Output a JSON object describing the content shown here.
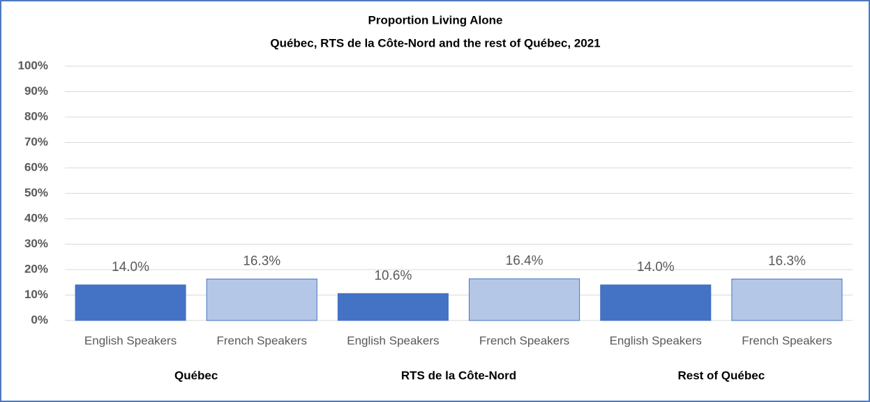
{
  "chart_data": {
    "type": "bar",
    "title": "Proportion Living Alone",
    "subtitle": "Québec, RTS de la Côte-Nord and the rest of Québec, 2021",
    "categories": [
      "English Speakers",
      "French Speakers",
      "English Speakers",
      "French Speakers",
      "English Speakers",
      "French Speakers"
    ],
    "groups": [
      "Québec",
      "RTS de la Côte-Nord",
      "Rest of Québec"
    ],
    "values": [
      14.0,
      16.3,
      10.6,
      16.4,
      14.0,
      16.3
    ],
    "value_labels": [
      "14.0%",
      "16.3%",
      "10.6%",
      "16.4%",
      "14.0%",
      "16.3%"
    ],
    "colors": [
      "#4472c4",
      "#b4c7e7",
      "#4472c4",
      "#b4c7e7",
      "#4472c4",
      "#b4c7e7"
    ],
    "ylim": [
      0,
      100
    ],
    "yticks": [
      {
        "value": 0,
        "label": "0%"
      },
      {
        "value": 10,
        "label": "10%"
      },
      {
        "value": 20,
        "label": "20%"
      },
      {
        "value": 30,
        "label": "30%"
      },
      {
        "value": 40,
        "label": "40%"
      },
      {
        "value": 50,
        "label": "50%"
      },
      {
        "value": 60,
        "label": "60%"
      },
      {
        "value": 70,
        "label": "70%"
      },
      {
        "value": 80,
        "label": "80%"
      },
      {
        "value": 90,
        "label": "90%"
      },
      {
        "value": 100,
        "label": "100%"
      }
    ],
    "grid": true
  }
}
